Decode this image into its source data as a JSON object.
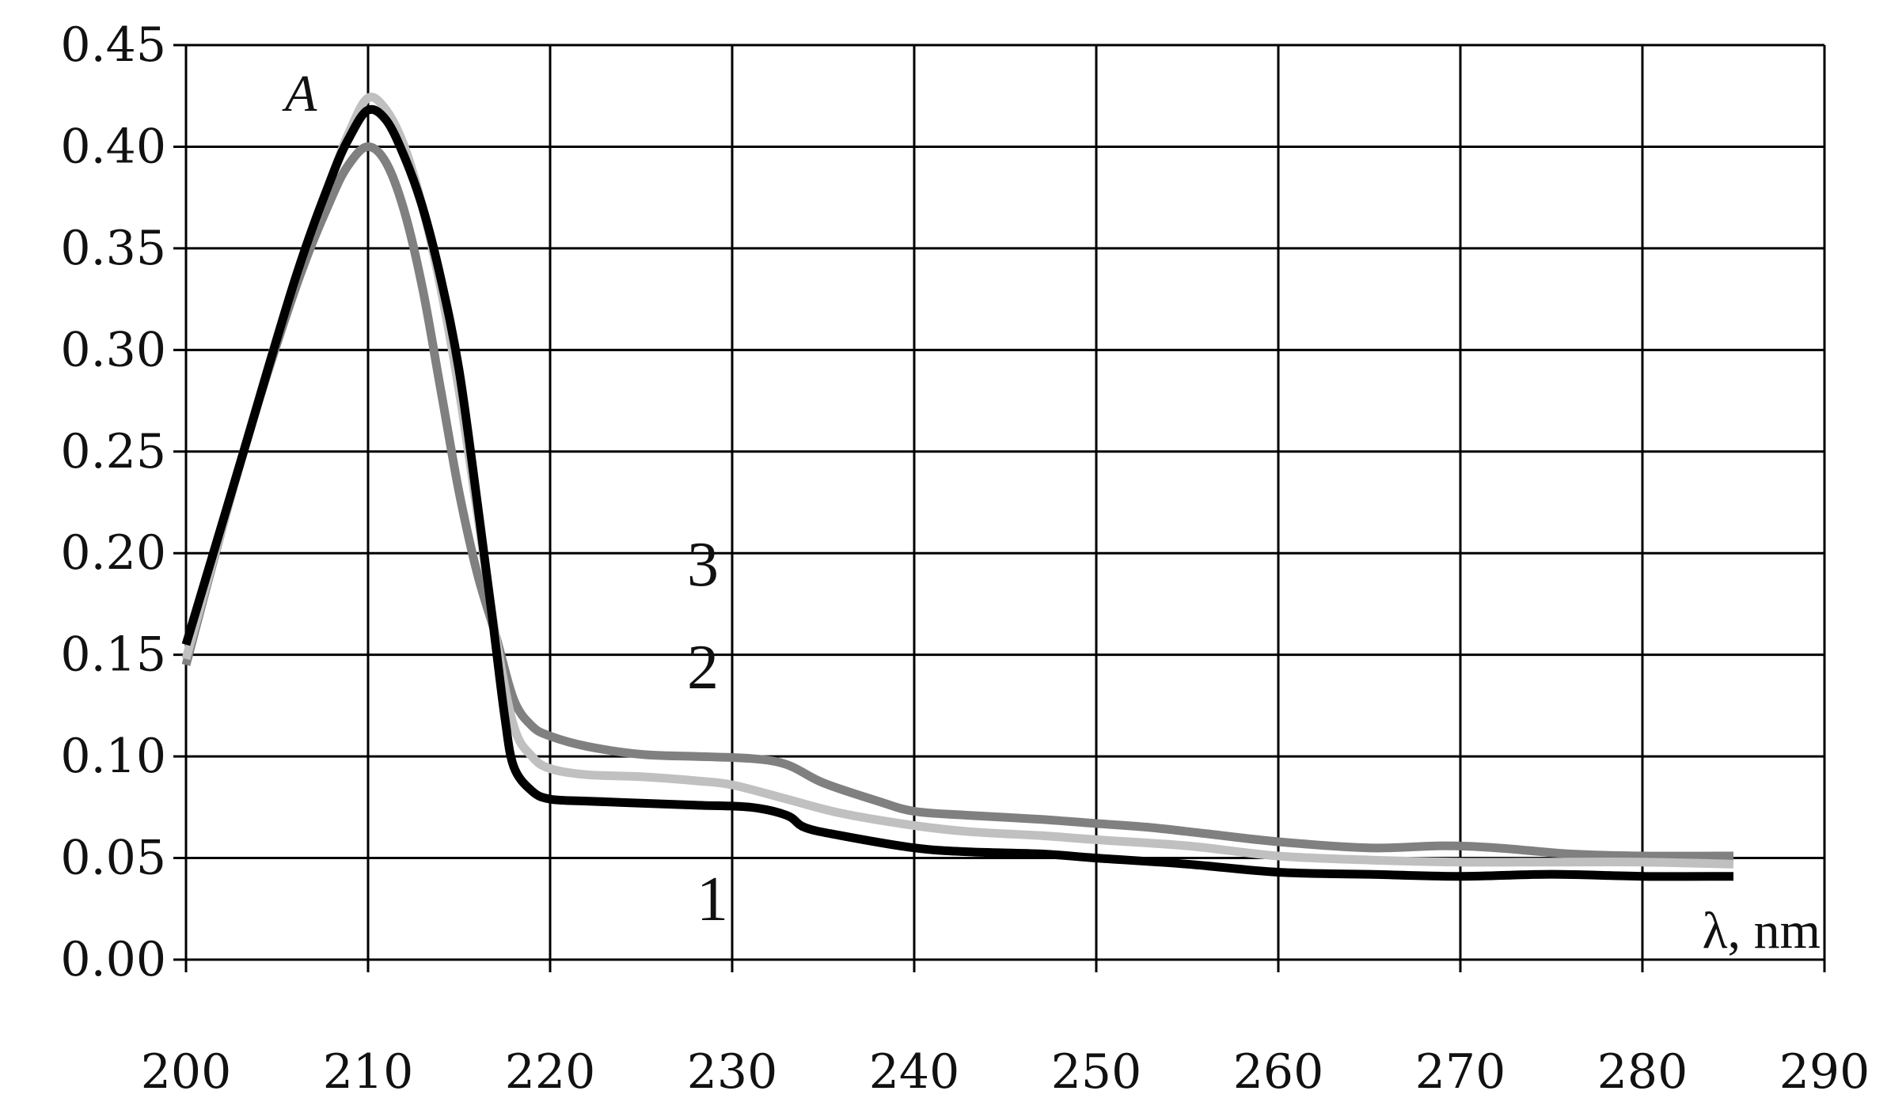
{
  "chart_data": {
    "type": "line",
    "ylabel": "A",
    "xlabel": "λ, nm",
    "xlim": [
      200,
      290
    ],
    "ylim": [
      0,
      0.45
    ],
    "x_ticks": [
      "200",
      "210",
      "220",
      "230",
      "240",
      "250",
      "260",
      "270",
      "280",
      "290"
    ],
    "y_ticks": [
      "0.00",
      "0.05",
      "0.10",
      "0.15",
      "0.20",
      "0.25",
      "0.30",
      "0.35",
      "0.40",
      "0.45"
    ],
    "grid": true,
    "series": [
      {
        "name": "3",
        "color": "#808080",
        "points": [
          [
            200,
            0.145
          ],
          [
            203,
            0.245
          ],
          [
            206,
            0.33
          ],
          [
            208,
            0.375
          ],
          [
            209,
            0.392
          ],
          [
            210,
            0.4
          ],
          [
            211,
            0.392
          ],
          [
            212,
            0.368
          ],
          [
            213,
            0.33
          ],
          [
            214,
            0.28
          ],
          [
            215,
            0.23
          ],
          [
            216,
            0.19
          ],
          [
            217,
            0.16
          ],
          [
            218,
            0.128
          ],
          [
            219,
            0.115
          ],
          [
            220,
            0.11
          ],
          [
            222,
            0.105
          ],
          [
            225,
            0.101
          ],
          [
            228,
            0.1
          ],
          [
            231,
            0.099
          ],
          [
            233,
            0.096
          ],
          [
            235,
            0.087
          ],
          [
            238,
            0.078
          ],
          [
            240,
            0.073
          ],
          [
            243,
            0.071
          ],
          [
            247,
            0.069
          ],
          [
            250,
            0.067
          ],
          [
            253,
            0.065
          ],
          [
            256,
            0.062
          ],
          [
            260,
            0.058
          ],
          [
            265,
            0.055
          ],
          [
            269,
            0.056
          ],
          [
            272,
            0.055
          ],
          [
            276,
            0.052
          ],
          [
            280,
            0.051
          ],
          [
            285,
            0.051
          ]
        ]
      },
      {
        "name": "2",
        "color": "#c0c0c0",
        "points": [
          [
            200,
            0.148
          ],
          [
            203,
            0.245
          ],
          [
            206,
            0.335
          ],
          [
            208,
            0.385
          ],
          [
            209,
            0.408
          ],
          [
            210,
            0.424
          ],
          [
            211,
            0.418
          ],
          [
            212,
            0.4
          ],
          [
            213,
            0.37
          ],
          [
            214,
            0.33
          ],
          [
            215,
            0.28
          ],
          [
            216,
            0.22
          ],
          [
            217,
            0.16
          ],
          [
            218,
            0.115
          ],
          [
            219,
            0.1
          ],
          [
            220,
            0.094
          ],
          [
            222,
            0.091
          ],
          [
            225,
            0.09
          ],
          [
            228,
            0.088
          ],
          [
            230,
            0.086
          ],
          [
            233,
            0.079
          ],
          [
            236,
            0.072
          ],
          [
            240,
            0.066
          ],
          [
            243,
            0.063
          ],
          [
            247,
            0.061
          ],
          [
            250,
            0.059
          ],
          [
            255,
            0.056
          ],
          [
            260,
            0.051
          ],
          [
            265,
            0.049
          ],
          [
            270,
            0.048
          ],
          [
            275,
            0.048
          ],
          [
            280,
            0.048
          ],
          [
            285,
            0.047
          ]
        ]
      },
      {
        "name": "1",
        "color": "#000000",
        "points": [
          [
            200,
            0.155
          ],
          [
            203,
            0.245
          ],
          [
            206,
            0.335
          ],
          [
            208,
            0.385
          ],
          [
            209,
            0.405
          ],
          [
            210,
            0.418
          ],
          [
            211,
            0.413
          ],
          [
            212,
            0.395
          ],
          [
            213,
            0.37
          ],
          [
            214,
            0.335
          ],
          [
            215,
            0.29
          ],
          [
            216,
            0.225
          ],
          [
            216.8,
            0.17
          ],
          [
            217.5,
            0.12
          ],
          [
            218,
            0.095
          ],
          [
            219,
            0.083
          ],
          [
            220,
            0.079
          ],
          [
            222,
            0.078
          ],
          [
            225,
            0.077
          ],
          [
            228,
            0.076
          ],
          [
            231,
            0.075
          ],
          [
            233,
            0.071
          ],
          [
            234,
            0.065
          ],
          [
            236,
            0.061
          ],
          [
            240,
            0.055
          ],
          [
            243,
            0.053
          ],
          [
            247,
            0.052
          ],
          [
            250,
            0.05
          ],
          [
            255,
            0.047
          ],
          [
            260,
            0.043
          ],
          [
            265,
            0.042
          ],
          [
            270,
            0.041
          ],
          [
            275,
            0.042
          ],
          [
            280,
            0.041
          ],
          [
            285,
            0.041
          ]
        ]
      }
    ]
  }
}
